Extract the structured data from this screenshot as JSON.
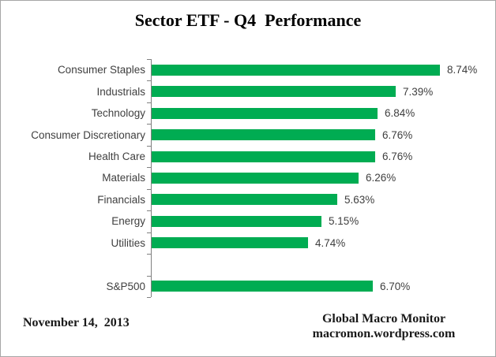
{
  "chart_data": {
    "type": "bar",
    "orientation": "horizontal",
    "title": "Sector ETF - Q4  Performance",
    "categories": [
      "Consumer Staples",
      "Industrials",
      "Technology",
      "Consumer Discretionary",
      "Health Care",
      "Materials",
      "Financials",
      "Energy",
      "Utilities",
      "",
      "S&P500"
    ],
    "values": [
      8.74,
      7.39,
      6.84,
      6.76,
      6.76,
      6.26,
      5.63,
      5.15,
      4.74,
      null,
      6.7
    ],
    "value_labels": [
      "8.74%",
      "7.39%",
      "6.84%",
      "6.76%",
      "6.76%",
      "6.26%",
      "5.63%",
      "5.15%",
      "4.74%",
      "",
      "6.70%"
    ],
    "xlabel": "",
    "ylabel": "",
    "xlim": [
      0,
      10
    ],
    "grid": false,
    "legend": false,
    "bar_color": "#00AC52",
    "axis_color": "#808080"
  },
  "footer": {
    "date": "November 14,  2013",
    "credit_line1": "Global Macro Monitor",
    "credit_line2": "macromon.wordpress.com"
  }
}
